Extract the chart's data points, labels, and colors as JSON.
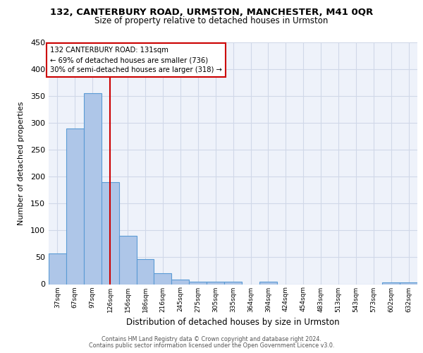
{
  "title1": "132, CANTERBURY ROAD, URMSTON, MANCHESTER, M41 0QR",
  "title2": "Size of property relative to detached houses in Urmston",
  "xlabel": "Distribution of detached houses by size in Urmston",
  "ylabel": "Number of detached properties",
  "bar_labels": [
    "37sqm",
    "67sqm",
    "97sqm",
    "126sqm",
    "156sqm",
    "186sqm",
    "216sqm",
    "245sqm",
    "275sqm",
    "305sqm",
    "335sqm",
    "364sqm",
    "394sqm",
    "424sqm",
    "454sqm",
    "483sqm",
    "513sqm",
    "543sqm",
    "573sqm",
    "602sqm",
    "632sqm"
  ],
  "bar_heights": [
    57,
    290,
    355,
    190,
    90,
    46,
    21,
    9,
    5,
    5,
    5,
    0,
    5,
    0,
    0,
    0,
    0,
    0,
    0,
    3,
    3
  ],
  "bar_color": "#aec6e8",
  "bar_edgecolor": "#5b9bd5",
  "red_line_index": 3,
  "annotation_lines": [
    "132 CANTERBURY ROAD: 131sqm",
    "← 69% of detached houses are smaller (736)",
    "30% of semi-detached houses are larger (318) →"
  ],
  "annotation_box_color": "#ffffff",
  "annotation_box_edgecolor": "#cc0000",
  "red_line_color": "#cc0000",
  "grid_color": "#d0d8e8",
  "background_color": "#eef2fa",
  "ylim": [
    0,
    450
  ],
  "yticks": [
    0,
    50,
    100,
    150,
    200,
    250,
    300,
    350,
    400,
    450
  ],
  "footer1": "Contains HM Land Registry data © Crown copyright and database right 2024.",
  "footer2": "Contains public sector information licensed under the Open Government Licence v3.0."
}
